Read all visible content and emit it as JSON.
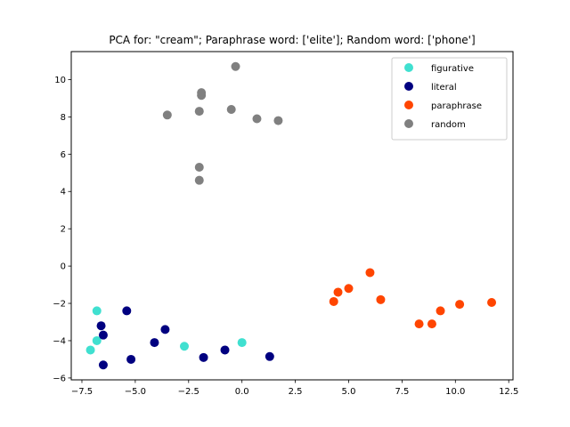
{
  "chart_data": {
    "type": "scatter",
    "title": "PCA for: \"cream\"; Paraphrase word: ['elite']; Random word: ['phone']",
    "xlabel": "",
    "ylabel": "",
    "xlim": [
      -8.0,
      12.7
    ],
    "ylim": [
      -6.1,
      11.5
    ],
    "xticks": [
      -7.5,
      -5.0,
      -2.5,
      0.0,
      2.5,
      5.0,
      7.5,
      10.0,
      12.5
    ],
    "xtick_labels": [
      "−7.5",
      "−5.0",
      "−2.5",
      "0.0",
      "2.5",
      "5.0",
      "7.5",
      "10.0",
      "12.5"
    ],
    "yticks": [
      -6,
      -4,
      -2,
      0,
      2,
      4,
      6,
      8,
      10
    ],
    "ytick_labels": [
      "−6",
      "−4",
      "−2",
      "0",
      "2",
      "4",
      "6",
      "8",
      "10"
    ],
    "grid": false,
    "legend_position": "top-right",
    "series": [
      {
        "name": "figurative",
        "color": "#40e0d0",
        "points": [
          [
            -6.8,
            -2.4
          ],
          [
            -6.8,
            -4.0
          ],
          [
            -7.1,
            -4.5
          ],
          [
            -2.7,
            -4.3
          ],
          [
            0.0,
            -4.1
          ]
        ]
      },
      {
        "name": "literal",
        "color": "#000080",
        "points": [
          [
            -6.6,
            -3.2
          ],
          [
            -6.5,
            -3.7
          ],
          [
            -6.5,
            -5.3
          ],
          [
            -5.4,
            -2.4
          ],
          [
            -5.2,
            -5.0
          ],
          [
            -4.1,
            -4.1
          ],
          [
            -3.6,
            -3.4
          ],
          [
            -1.8,
            -4.9
          ],
          [
            -0.8,
            -4.5
          ],
          [
            1.3,
            -4.85
          ]
        ]
      },
      {
        "name": "paraphrase",
        "color": "#ff4500",
        "points": [
          [
            4.3,
            -1.9
          ],
          [
            4.5,
            -1.4
          ],
          [
            5.0,
            -1.2
          ],
          [
            6.0,
            -0.35
          ],
          [
            6.5,
            -1.8
          ],
          [
            8.3,
            -3.1
          ],
          [
            8.9,
            -3.1
          ],
          [
            9.3,
            -2.4
          ],
          [
            10.2,
            -2.05
          ],
          [
            11.7,
            -1.95
          ]
        ]
      },
      {
        "name": "random",
        "color": "#808080",
        "points": [
          [
            -0.3,
            10.7
          ],
          [
            -1.9,
            9.3
          ],
          [
            -1.9,
            9.15
          ],
          [
            -3.5,
            8.1
          ],
          [
            -2.0,
            8.3
          ],
          [
            -0.5,
            8.4
          ],
          [
            0.7,
            7.9
          ],
          [
            1.7,
            7.8
          ],
          [
            -2.0,
            5.3
          ],
          [
            -2.0,
            4.6
          ]
        ]
      }
    ]
  }
}
